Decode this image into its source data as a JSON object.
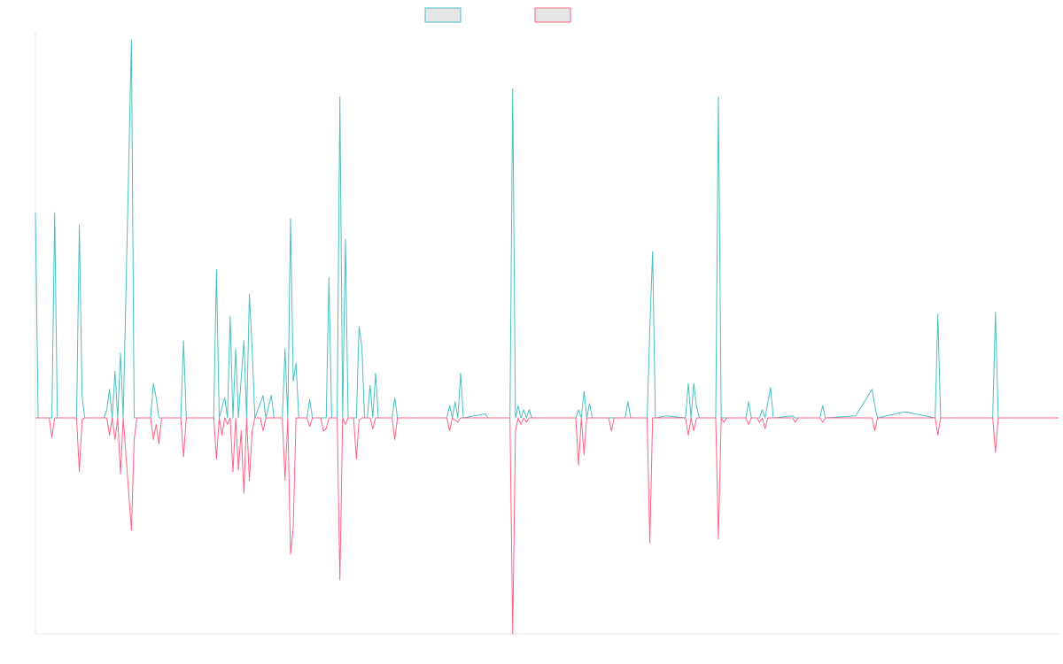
{
  "chart_data": {
    "type": "line",
    "title": "",
    "xlabel": "",
    "ylabel": "",
    "ylim": [
      -1.0,
      1.9
    ],
    "grid": false,
    "legend": {
      "placement": "top-center",
      "entries": [
        {
          "label": "",
          "color": "#4bc0c0"
        },
        {
          "label": "",
          "color": "#ff6384"
        }
      ]
    },
    "series": [
      {
        "color": "#4bc0c0",
        "points": [
          [
            0,
            1.01
          ],
          [
            1,
            0
          ],
          [
            6,
            0
          ],
          [
            7,
            1.01
          ],
          [
            8,
            0
          ],
          [
            15,
            0
          ],
          [
            16,
            0.95
          ],
          [
            17,
            0.11
          ],
          [
            18,
            0
          ],
          [
            25,
            0
          ],
          [
            26,
            0.04
          ],
          [
            27,
            0.14
          ],
          [
            28,
            0
          ],
          [
            29,
            0.23
          ],
          [
            30,
            0
          ],
          [
            31,
            0.32
          ],
          [
            32,
            0
          ],
          [
            35,
            1.86
          ],
          [
            36,
            0
          ],
          [
            42,
            0
          ],
          [
            43,
            0.17
          ],
          [
            44,
            0.1
          ],
          [
            45,
            0
          ],
          [
            53,
            0
          ],
          [
            54,
            0.38
          ],
          [
            55,
            0
          ],
          [
            65,
            0
          ],
          [
            66,
            0.73
          ],
          [
            67,
            0
          ],
          [
            69,
            0.1
          ],
          [
            70,
            0
          ],
          [
            71,
            0.5
          ],
          [
            72,
            0
          ],
          [
            73,
            0.34
          ],
          [
            74,
            0
          ],
          [
            76,
            0.38
          ],
          [
            77,
            0
          ],
          [
            78,
            0.61
          ],
          [
            79,
            0.34
          ],
          [
            80,
            0
          ],
          [
            83,
            0.11
          ],
          [
            84,
            0
          ],
          [
            86,
            0.11
          ],
          [
            87,
            0
          ],
          [
            90,
            0
          ],
          [
            91,
            0.34
          ],
          [
            92,
            0
          ],
          [
            93,
            0.98
          ],
          [
            94,
            0.18
          ],
          [
            95,
            0.27
          ],
          [
            96,
            0
          ],
          [
            99,
            0
          ],
          [
            100,
            0.09
          ],
          [
            101,
            0
          ],
          [
            106,
            0
          ],
          [
            107,
            0.69
          ],
          [
            108,
            0
          ],
          [
            110,
            0
          ],
          [
            111,
            1.58
          ],
          [
            112,
            0
          ],
          [
            113,
            0.88
          ],
          [
            114,
            0
          ],
          [
            117,
            0
          ],
          [
            118,
            0.45
          ],
          [
            119,
            0.35
          ],
          [
            120,
            0
          ],
          [
            121,
            0
          ],
          [
            122,
            0.16
          ],
          [
            123,
            0
          ],
          [
            124,
            0.22
          ],
          [
            125,
            0
          ],
          [
            130,
            0
          ],
          [
            131,
            0.1
          ],
          [
            132,
            0
          ],
          [
            150,
            0
          ],
          [
            151,
            0.06
          ],
          [
            152,
            0
          ],
          [
            153,
            0.08
          ],
          [
            154,
            0
          ],
          [
            155,
            0.22
          ],
          [
            156,
            0
          ],
          [
            164,
            0.02
          ],
          [
            165,
            0
          ],
          [
            173,
            0
          ],
          [
            174,
            1.62
          ],
          [
            175,
            0
          ],
          [
            176,
            0.06
          ],
          [
            177,
            0
          ],
          [
            178,
            0.04
          ],
          [
            179,
            0
          ],
          [
            180,
            0.04
          ],
          [
            181,
            0
          ],
          [
            197,
            0
          ],
          [
            198,
            0.04
          ],
          [
            199,
            0
          ],
          [
            200,
            0.13
          ],
          [
            201,
            0
          ],
          [
            202,
            0.07
          ],
          [
            203,
            0
          ],
          [
            215,
            0
          ],
          [
            216,
            0.08
          ],
          [
            217,
            0
          ],
          [
            223,
            0
          ],
          [
            224,
            0.44
          ],
          [
            225,
            0.82
          ],
          [
            226,
            0
          ],
          [
            230,
            0.01
          ],
          [
            237,
            0
          ],
          [
            238,
            0.17
          ],
          [
            239,
            0
          ],
          [
            240,
            0.17
          ],
          [
            241,
            0.06
          ],
          [
            242,
            0
          ],
          [
            248,
            0
          ],
          [
            249,
            1.58
          ],
          [
            250,
            0
          ],
          [
            259,
            0
          ],
          [
            260,
            0.08
          ],
          [
            261,
            0
          ],
          [
            264,
            0
          ],
          [
            265,
            0.04
          ],
          [
            266,
            0
          ],
          [
            268,
            0.15
          ],
          [
            269,
            0
          ],
          [
            276,
            0.01
          ],
          [
            277,
            0
          ],
          [
            286,
            0
          ],
          [
            287,
            0.06
          ],
          [
            288,
            0
          ],
          [
            299,
            0.01
          ],
          [
            305,
            0.14
          ],
          [
            306,
            0.06
          ],
          [
            307,
            0
          ],
          [
            317,
            0.03
          ],
          [
            328,
            0
          ],
          [
            329,
            0.51
          ],
          [
            330,
            0
          ],
          [
            349,
            0
          ],
          [
            350,
            0.52
          ],
          [
            351,
            0
          ]
        ]
      },
      {
        "color": "#ff6384",
        "points": [
          [
            0,
            0
          ],
          [
            5,
            0
          ],
          [
            6,
            -0.09
          ],
          [
            7,
            0
          ],
          [
            15,
            0
          ],
          [
            16,
            -0.25
          ],
          [
            17,
            -0.01
          ],
          [
            18,
            0
          ],
          [
            26,
            0
          ],
          [
            27,
            -0.08
          ],
          [
            28,
            0
          ],
          [
            29,
            -0.1
          ],
          [
            30,
            0
          ],
          [
            31,
            -0.26
          ],
          [
            32,
            0
          ],
          [
            35,
            -0.52
          ],
          [
            36,
            -0.1
          ],
          [
            37,
            0
          ],
          [
            42,
            0
          ],
          [
            43,
            -0.1
          ],
          [
            44,
            -0.03
          ],
          [
            45,
            -0.12
          ],
          [
            46,
            0
          ],
          [
            53,
            0
          ],
          [
            54,
            -0.18
          ],
          [
            55,
            0
          ],
          [
            65,
            0
          ],
          [
            66,
            -0.19
          ],
          [
            67,
            0
          ],
          [
            68,
            -0.08
          ],
          [
            69,
            0
          ],
          [
            70,
            -0.03
          ],
          [
            71,
            0
          ],
          [
            72,
            -0.25
          ],
          [
            73,
            0
          ],
          [
            74,
            -0.24
          ],
          [
            75,
            -0.06
          ],
          [
            76,
            -0.35
          ],
          [
            77,
            0
          ],
          [
            78,
            -0.29
          ],
          [
            79,
            -0.06
          ],
          [
            80,
            0
          ],
          [
            82,
            0
          ],
          [
            83,
            -0.06
          ],
          [
            84,
            0
          ],
          [
            90,
            0
          ],
          [
            91,
            -0.29
          ],
          [
            92,
            0
          ],
          [
            93,
            -0.63
          ],
          [
            94,
            -0.51
          ],
          [
            95,
            0
          ],
          [
            99,
            0
          ],
          [
            100,
            -0.04
          ],
          [
            101,
            0
          ],
          [
            104,
            0
          ],
          [
            105,
            -0.06
          ],
          [
            106,
            -0.05
          ],
          [
            107,
            0
          ],
          [
            110,
            0
          ],
          [
            111,
            -0.75
          ],
          [
            112,
            0
          ],
          [
            113,
            -0.03
          ],
          [
            114,
            0
          ],
          [
            116,
            0
          ],
          [
            117,
            -0.19
          ],
          [
            118,
            -0.01
          ],
          [
            119,
            0
          ],
          [
            122,
            0
          ],
          [
            123,
            -0.05
          ],
          [
            124,
            0
          ],
          [
            130,
            0
          ],
          [
            131,
            -0.1
          ],
          [
            132,
            0
          ],
          [
            150,
            0
          ],
          [
            151,
            -0.06
          ],
          [
            152,
            0
          ],
          [
            154,
            -0.02
          ],
          [
            155,
            0
          ],
          [
            173,
            0
          ],
          [
            174,
            -1.0
          ],
          [
            175,
            -0.06
          ],
          [
            176,
            0
          ],
          [
            177,
            -0.03
          ],
          [
            178,
            0
          ],
          [
            179,
            -0.02
          ],
          [
            180,
            0
          ],
          [
            181,
            0
          ],
          [
            197,
            0
          ],
          [
            198,
            -0.22
          ],
          [
            199,
            0
          ],
          [
            200,
            -0.17
          ],
          [
            201,
            0
          ],
          [
            209,
            0
          ],
          [
            210,
            -0.06
          ],
          [
            211,
            0
          ],
          [
            223,
            0
          ],
          [
            224,
            -0.58
          ],
          [
            225,
            0
          ],
          [
            237,
            0
          ],
          [
            238,
            -0.08
          ],
          [
            239,
            0
          ],
          [
            240,
            -0.06
          ],
          [
            241,
            0
          ],
          [
            248,
            0
          ],
          [
            249,
            -0.56
          ],
          [
            250,
            0
          ],
          [
            251,
            -0.02
          ],
          [
            252,
            0
          ],
          [
            259,
            0
          ],
          [
            260,
            -0.03
          ],
          [
            261,
            0
          ],
          [
            263,
            0
          ],
          [
            264,
            -0.02
          ],
          [
            265,
            0
          ],
          [
            266,
            -0.05
          ],
          [
            267,
            0
          ],
          [
            276,
            0
          ],
          [
            277,
            -0.02
          ],
          [
            278,
            0
          ],
          [
            286,
            0
          ],
          [
            287,
            -0.02
          ],
          [
            288,
            0
          ],
          [
            305,
            0
          ],
          [
            306,
            -0.06
          ],
          [
            307,
            0
          ],
          [
            328,
            0
          ],
          [
            329,
            -0.08
          ],
          [
            330,
            0
          ],
          [
            349,
            0
          ],
          [
            350,
            -0.16
          ],
          [
            351,
            0
          ]
        ]
      }
    ],
    "xlim": [
      0,
      373
    ]
  }
}
